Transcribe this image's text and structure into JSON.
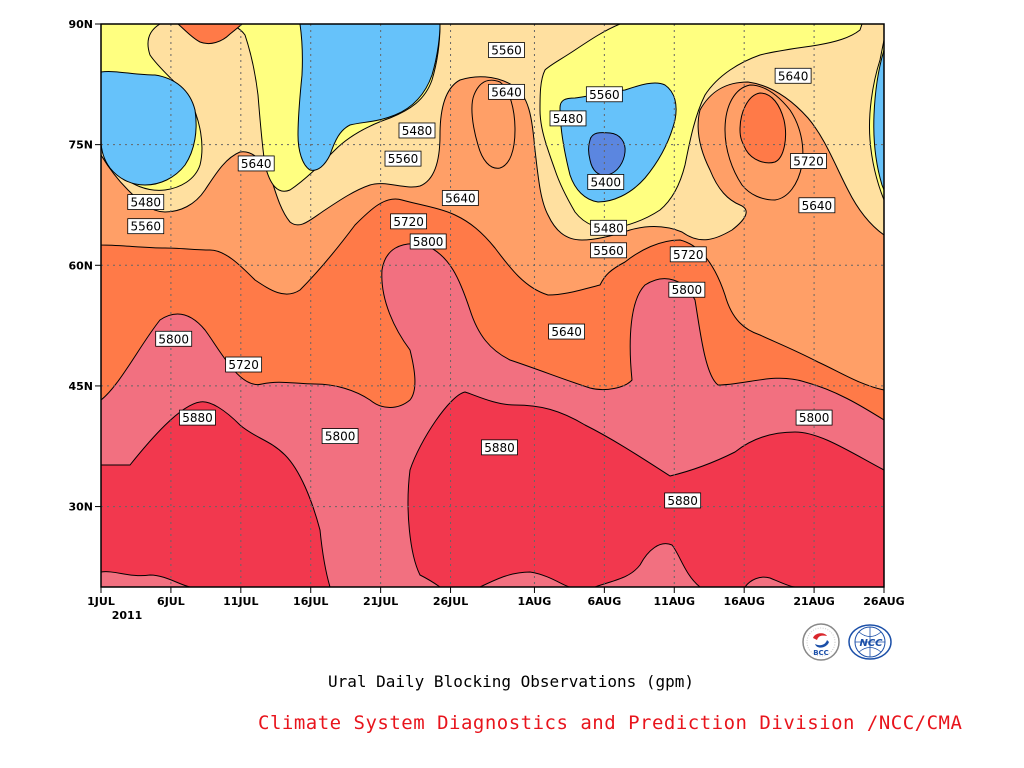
{
  "caption": {
    "title": "Ural Daily Blocking Observations (gpm)",
    "credit": "Climate System Diagnostics and Prediction Division /NCC/CMA"
  },
  "logos": [
    {
      "name": "bcc-logo",
      "text": "BCC"
    },
    {
      "name": "ncc-logo",
      "text": "NCC"
    }
  ],
  "chart_data": {
    "type": "heatmap",
    "subtype": "filled-contour",
    "title": "Ural Daily Blocking Observations (gpm)",
    "x_axis": {
      "ticks": [
        {
          "label": "1JUL",
          "day": 0
        },
        {
          "label": "6JUL",
          "day": 5
        },
        {
          "label": "11JUL",
          "day": 10
        },
        {
          "label": "16JUL",
          "day": 15
        },
        {
          "label": "21JUL",
          "day": 20
        },
        {
          "label": "26JUL",
          "day": 25
        },
        {
          "label": "1AUG",
          "day": 31
        },
        {
          "label": "6AUG",
          "day": 36
        },
        {
          "label": "11AUG",
          "day": 41
        },
        {
          "label": "16AUG",
          "day": 46
        },
        {
          "label": "21AUG",
          "day": 51
        },
        {
          "label": "26AUG",
          "day": 56
        }
      ],
      "year_label": "2011",
      "range_days": [
        0,
        56
      ]
    },
    "y_axis": {
      "ticks": [
        "30N",
        "45N",
        "60N",
        "75N",
        "90N"
      ],
      "tick_values": [
        30,
        45,
        60,
        75,
        90
      ],
      "range": [
        20,
        90
      ]
    },
    "grid": true,
    "levels": [
      5400,
      5480,
      5560,
      5640,
      5720,
      5800,
      5880
    ],
    "colors": {
      "lt5400": "#5b86e0",
      "c5400": "#66c2fa",
      "c5480": "#ffff80",
      "c5560": "#ffe0a0",
      "c5640": "#ff9f67",
      "c5720": "#ff7a48",
      "c5800": "#f27080",
      "c5880": "#f2384e"
    },
    "contour_labels": [
      {
        "text": "5560",
        "day": 29.0,
        "lat": 86.7
      },
      {
        "text": "5560",
        "day": 36.0,
        "lat": 81.2
      },
      {
        "text": "5640",
        "day": 29.0,
        "lat": 81.5
      },
      {
        "text": "5640",
        "day": 49.5,
        "lat": 83.5
      },
      {
        "text": "5480",
        "day": 33.4,
        "lat": 78.2
      },
      {
        "text": "5480",
        "day": 22.6,
        "lat": 76.7
      },
      {
        "text": "5560",
        "day": 21.6,
        "lat": 73.2
      },
      {
        "text": "5640",
        "day": 11.1,
        "lat": 72.6
      },
      {
        "text": "5400",
        "day": 36.1,
        "lat": 70.3
      },
      {
        "text": "5720",
        "day": 50.6,
        "lat": 72.9
      },
      {
        "text": "5480",
        "day": 3.2,
        "lat": 67.8
      },
      {
        "text": "5560",
        "day": 3.2,
        "lat": 64.8
      },
      {
        "text": "5640",
        "day": 25.7,
        "lat": 68.3
      },
      {
        "text": "5640",
        "day": 51.2,
        "lat": 67.4
      },
      {
        "text": "5720",
        "day": 22.0,
        "lat": 65.4
      },
      {
        "text": "5480",
        "day": 36.3,
        "lat": 64.6
      },
      {
        "text": "5800",
        "day": 23.4,
        "lat": 62.9
      },
      {
        "text": "5560",
        "day": 36.3,
        "lat": 61.8
      },
      {
        "text": "5720",
        "day": 42.0,
        "lat": 61.3
      },
      {
        "text": "5800",
        "day": 41.9,
        "lat": 56.9
      },
      {
        "text": "5640",
        "day": 33.3,
        "lat": 51.7
      },
      {
        "text": "5800",
        "day": 5.2,
        "lat": 50.8
      },
      {
        "text": "5720",
        "day": 10.2,
        "lat": 47.6
      },
      {
        "text": "5880",
        "day": 6.9,
        "lat": 41.0
      },
      {
        "text": "5800",
        "day": 51.0,
        "lat": 41.0
      },
      {
        "text": "5800",
        "day": 17.1,
        "lat": 38.7
      },
      {
        "text": "5880",
        "day": 28.5,
        "lat": 37.3
      },
      {
        "text": "5880",
        "day": 41.6,
        "lat": 30.7
      }
    ]
  }
}
